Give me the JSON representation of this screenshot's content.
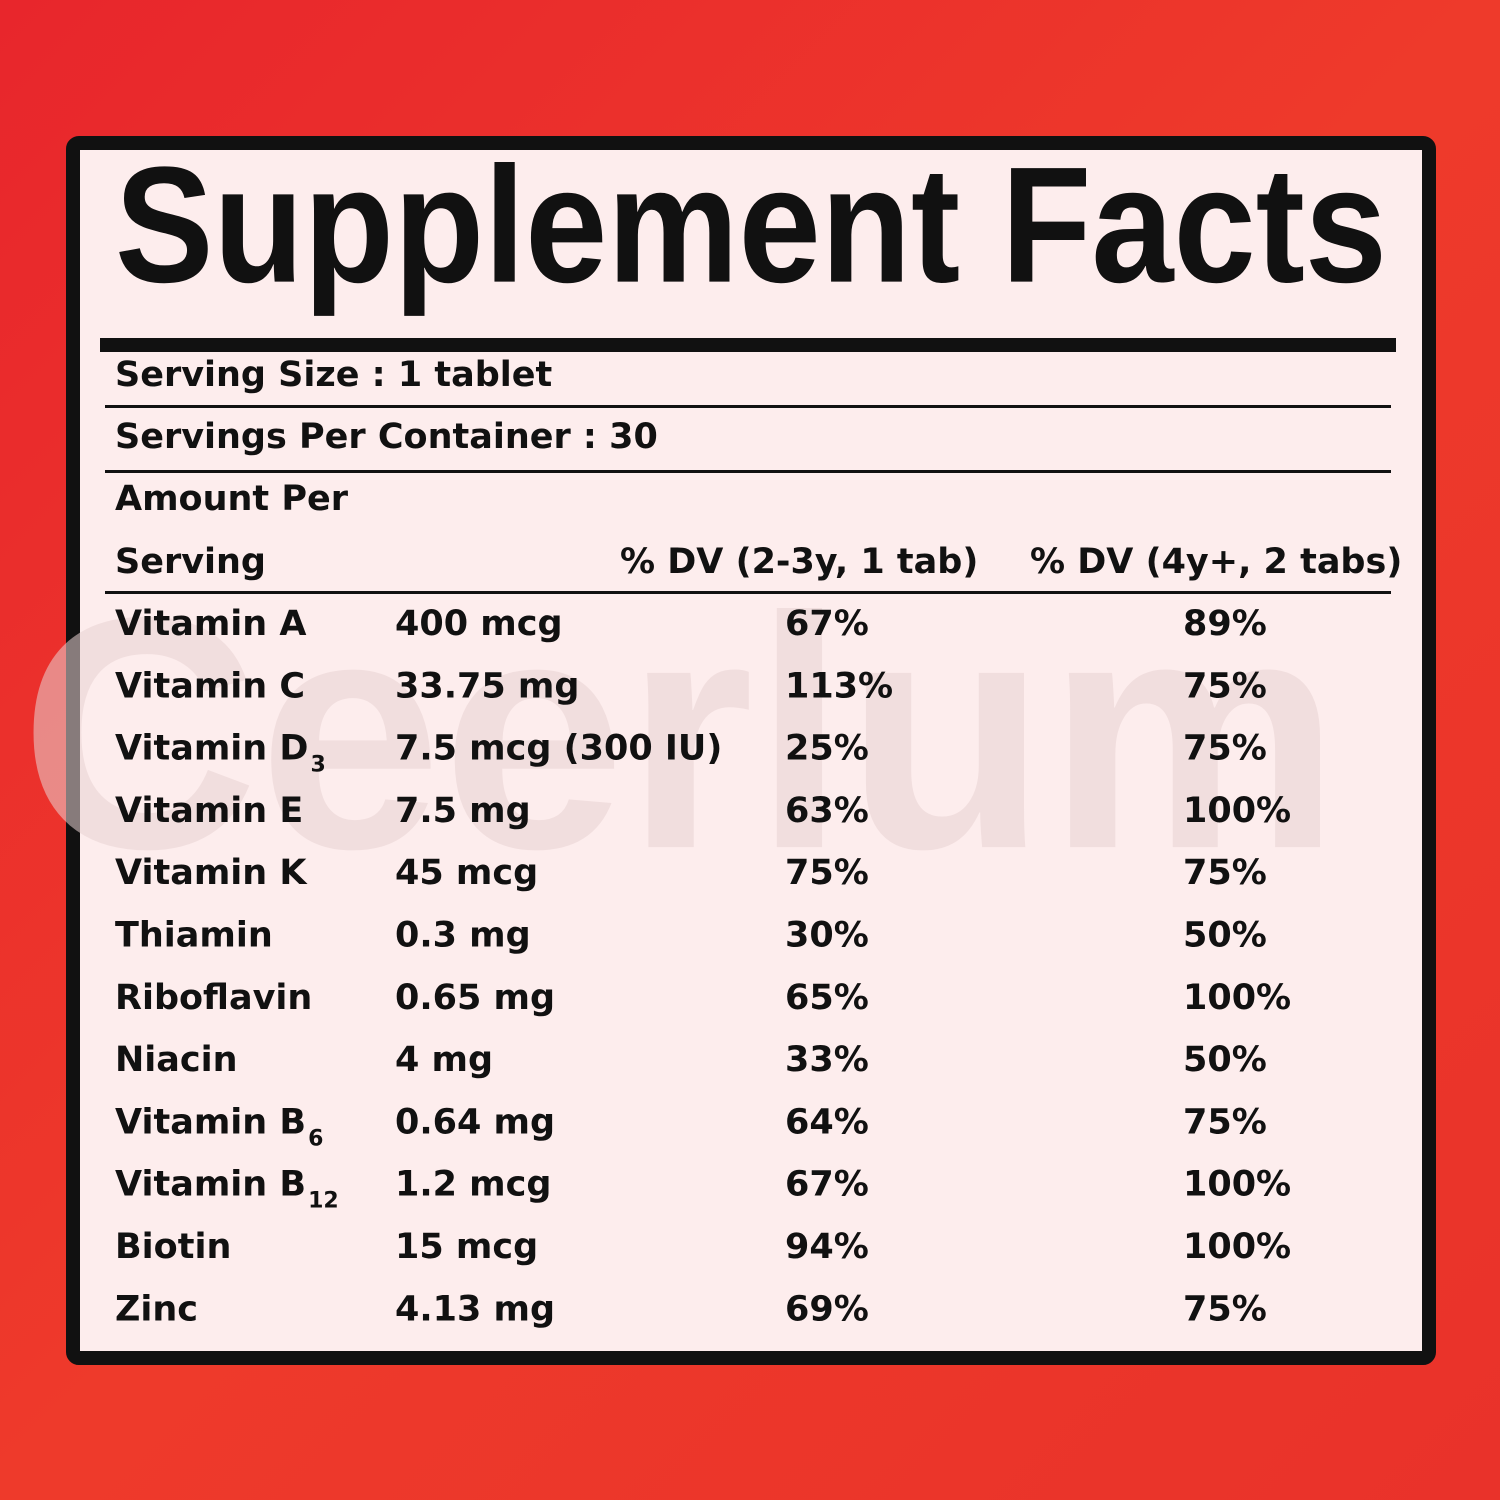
{
  "label": {
    "title": "Supplement Facts",
    "watermark": "Ceerlum",
    "serving_size": "Serving Size : 1 tablet",
    "servings_per_container": "Servings Per Container : 30",
    "header": {
      "amount_per_serving": [
        "Amount Per",
        "Serving"
      ],
      "dv_1_tab": "% DV (2-3y, 1 tab)",
      "dv_2_tabs": "% DV (4y+, 2 tabs)"
    },
    "rows": [
      {
        "name": "Vitamin A",
        "amount": "400 mcg",
        "dv_1_tab": "67%",
        "dv_2_tabs": "89%"
      },
      {
        "name": "Vitamin C",
        "amount": "33.75 mg",
        "dv_1_tab": "113%",
        "dv_2_tabs": "75%"
      },
      {
        "name": "Vitamin D",
        "sub": "3",
        "amount": "7.5 mcg (300 IU)",
        "dv_1_tab": "25%",
        "dv_2_tabs": "75%"
      },
      {
        "name": "Vitamin E",
        "amount": "7.5 mg",
        "dv_1_tab": "63%",
        "dv_2_tabs": "100%"
      },
      {
        "name": "Vitamin K",
        "amount": "45 mcg",
        "dv_1_tab": "75%",
        "dv_2_tabs": "75%"
      },
      {
        "name": "Thiamin",
        "amount": "0.3 mg",
        "dv_1_tab": "30%",
        "dv_2_tabs": "50%"
      },
      {
        "name": "Riboflavin",
        "amount": "0.65 mg",
        "dv_1_tab": "65%",
        "dv_2_tabs": "100%"
      },
      {
        "name": "Niacin",
        "amount": "4 mg",
        "dv_1_tab": "33%",
        "dv_2_tabs": "50%"
      },
      {
        "name": "Vitamin B",
        "sub": "6",
        "amount": "0.64 mg",
        "dv_1_tab": "64%",
        "dv_2_tabs": "75%"
      },
      {
        "name": "Vitamin B",
        "sub": "12",
        "amount": "1.2 mcg",
        "dv_1_tab": "67%",
        "dv_2_tabs": "100%"
      },
      {
        "name": "Biotin",
        "amount": "15 mcg",
        "dv_1_tab": "94%",
        "dv_2_tabs": "100%"
      },
      {
        "name": "Zinc",
        "amount": "4.13 mg",
        "dv_1_tab": "69%",
        "dv_2_tabs": "75%"
      }
    ]
  }
}
